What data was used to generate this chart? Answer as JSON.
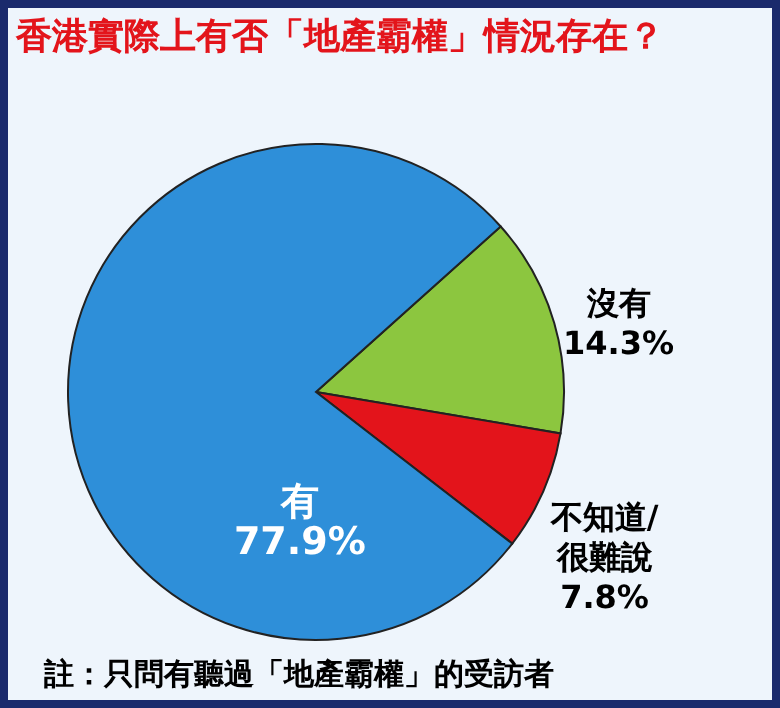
{
  "chart_data": {
    "type": "pie",
    "title": "香港實際上有否「地產霸權」情況存在？",
    "categories": [
      "沒有",
      "不知道/很難說",
      "有"
    ],
    "values": [
      14.3,
      7.8,
      77.9
    ],
    "colors": [
      "#8cc63f",
      "#e3141b",
      "#2e8fd9"
    ],
    "value_labels": [
      "14.3%",
      "7.8%",
      "77.9%"
    ],
    "annotations": [
      "註：只問有聽過「地產霸權」的受訪者"
    ]
  }
}
